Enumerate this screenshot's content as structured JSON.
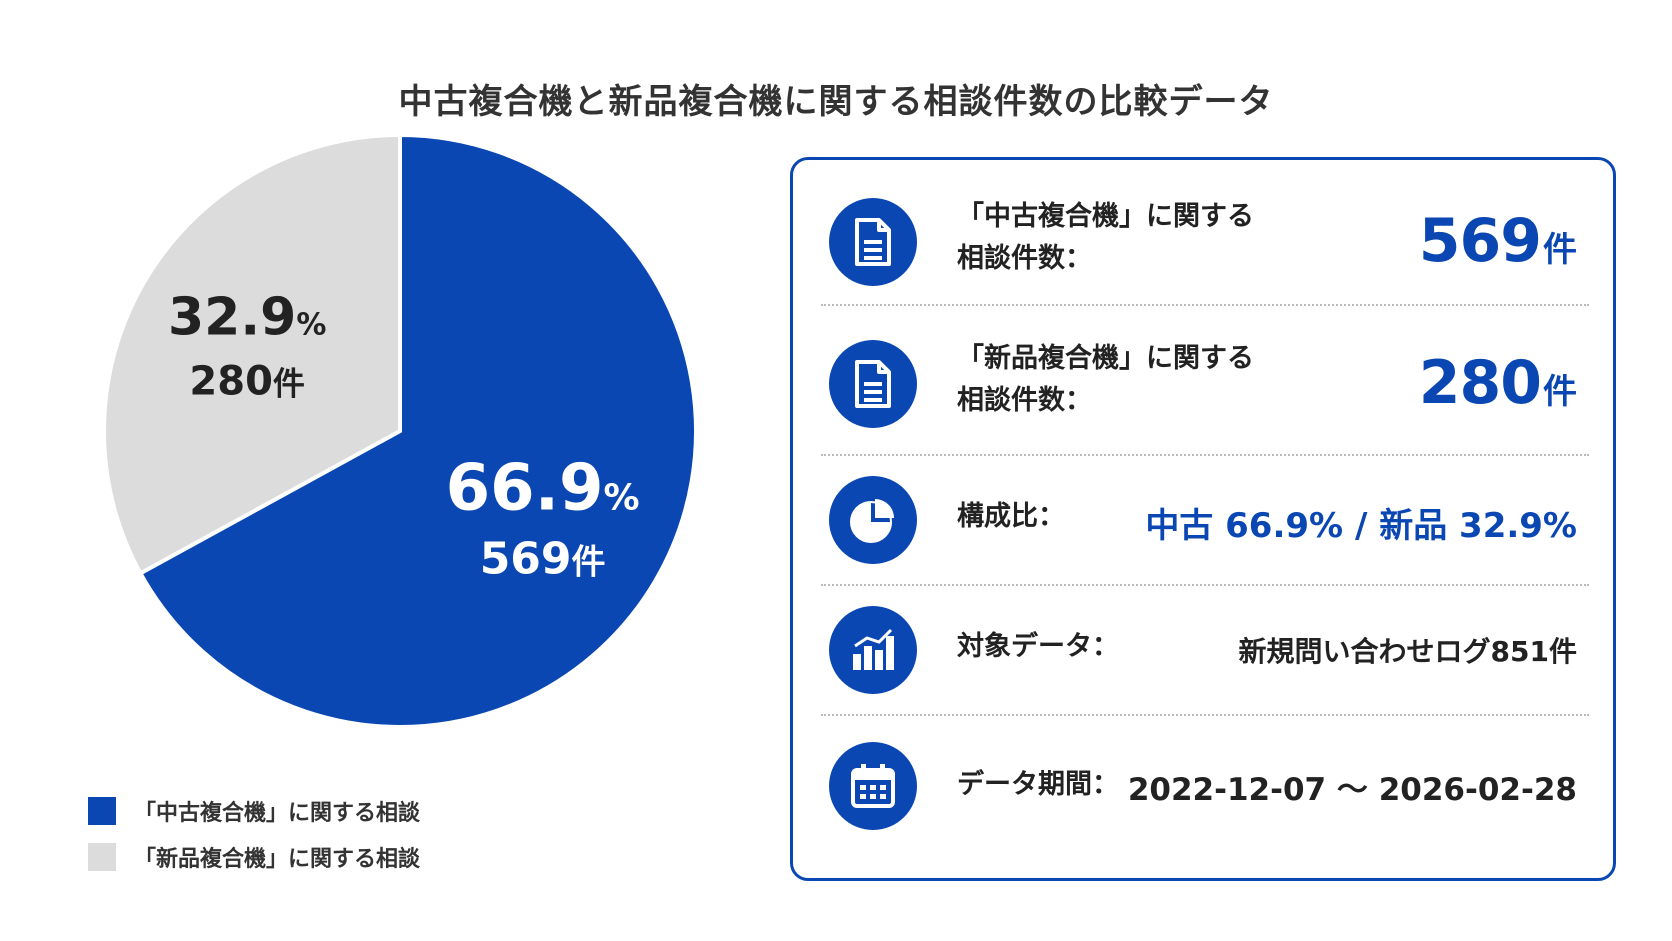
{
  "title": "中古複合機と新品複合機に関する相談件数の比較データ",
  "chart_data": {
    "type": "pie",
    "title": "中古複合機と新品複合機に関する相談件数の比較データ",
    "slices": [
      {
        "label": "「中古複合機」に関する相談",
        "value": 569,
        "percent": 66.9,
        "color": "#0b47b3",
        "pct_text": "66.9",
        "pct_unit": "%",
        "count_text": "569",
        "count_unit": "件"
      },
      {
        "label": "「新品複合機」に関する相談",
        "value": 280,
        "percent": 32.9,
        "color": "#dcdcdc",
        "pct_text": "32.9",
        "pct_unit": "%",
        "count_text": "280",
        "count_unit": "件"
      }
    ],
    "legend_position": "bottom-left"
  },
  "panel": {
    "used": {
      "label_line1": "「中古複合機」に関する",
      "label_line2": "相談件数：",
      "value": "569",
      "unit": "件",
      "icon": "document-icon"
    },
    "new": {
      "label_line1": "「新品複合機」に関する",
      "label_line2": "相談件数：",
      "value": "280",
      "unit": "件",
      "icon": "document-icon"
    },
    "ratio": {
      "label": "構成比：",
      "value": "中古 66.9% / 新品 32.9%",
      "icon": "pie-chart-icon"
    },
    "target": {
      "label": "対象データ：",
      "value": "新規問い合わせログ851件",
      "icon": "bar-chart-icon"
    },
    "period": {
      "label": "データ期間：",
      "value": "2022-12-07 ～ 2026-02-28",
      "icon": "calendar-icon"
    }
  },
  "colors": {
    "accent": "#0b47b3",
    "gray_slice": "#dcdcdc"
  }
}
